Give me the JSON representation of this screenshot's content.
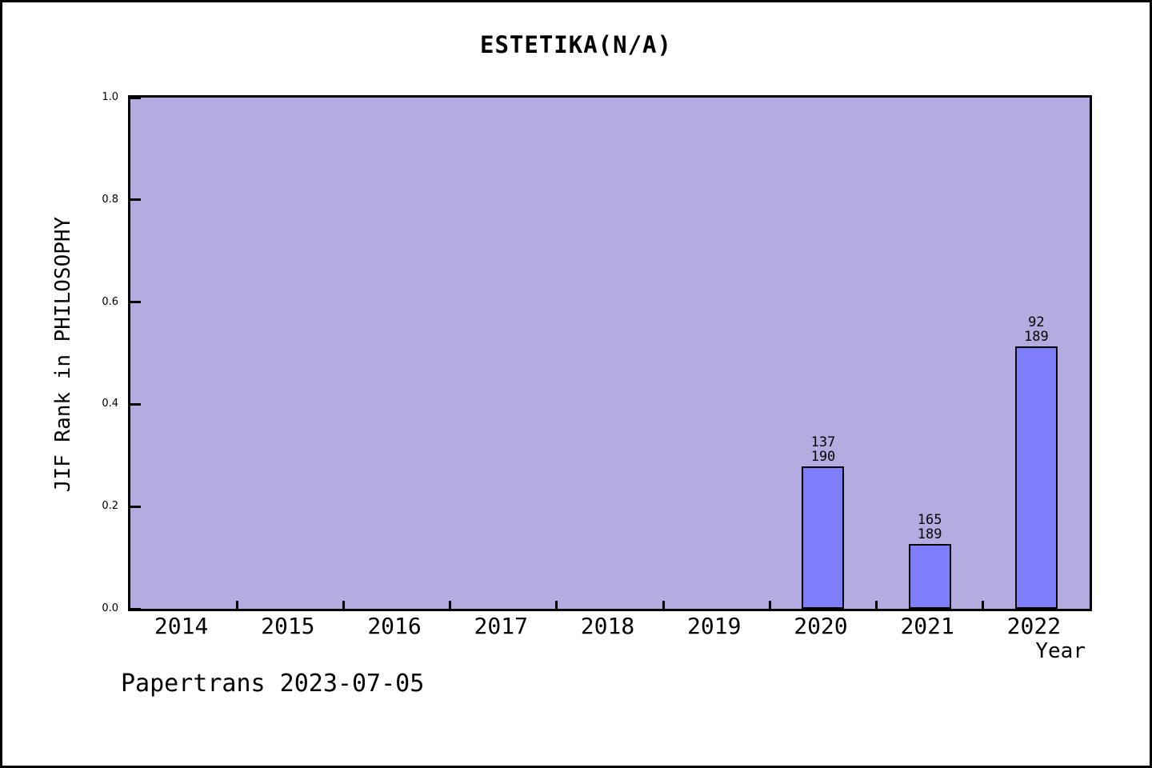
{
  "title": "ESTETIKA(N/A)",
  "footer": "Papertrans 2023-07-05",
  "chart_data": {
    "type": "bar",
    "title": "ESTETIKA(N/A)",
    "xlabel": "Year",
    "ylabel": "JIF Rank in PHILOSOPHY",
    "categories": [
      "2014",
      "2015",
      "2016",
      "2017",
      "2018",
      "2019",
      "2020",
      "2021",
      "2022"
    ],
    "ylim": [
      0.0,
      1.0
    ],
    "yticks": [
      0.0,
      0.2,
      0.4,
      0.6,
      0.8,
      1.0
    ],
    "grid": false,
    "legend_position": "none",
    "bars": [
      {
        "category": "2020",
        "rank": "137",
        "total": "190",
        "value": 0.279
      },
      {
        "category": "2021",
        "rank": "165",
        "total": "189",
        "value": 0.127
      },
      {
        "category": "2022",
        "rank": "92",
        "total": "189",
        "value": 0.513
      }
    ],
    "colors": {
      "bar_fill": "#7e7efa",
      "bar_edge": "#000000",
      "plot_background": "#b4ace0",
      "text": "#000000"
    }
  }
}
